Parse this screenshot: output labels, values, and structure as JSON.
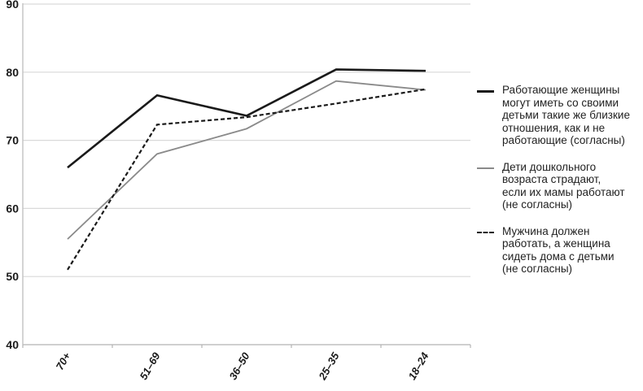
{
  "chart_data": {
    "type": "line",
    "title": "",
    "xlabel": "",
    "ylabel": "",
    "categories": [
      "70+",
      "51–69",
      "36–50",
      "25–35",
      "18–24"
    ],
    "series": [
      {
        "name": "Работающие женщины\nмогут иметь со своими\nдетьми такие же близкие\nотношения, как и не\nработающие (согласны)",
        "values": [
          66,
          76.6,
          73.6,
          80.4,
          80.2
        ],
        "color": "#1a1a1a",
        "width": 2.6,
        "dash": ""
      },
      {
        "name": "Дети дошкольного\nвозраста страдают,\nесли их мамы работают\n(не согласны)",
        "values": [
          55.5,
          68,
          71.7,
          78.7,
          77.4
        ],
        "color": "#8a8a8a",
        "width": 1.8,
        "dash": ""
      },
      {
        "name": "Мужчина должен\nработать, а женщина\nсидеть дома с детьми\n(не согласны)",
        "values": [
          51,
          72.3,
          73.4,
          75.4,
          77.5
        ],
        "color": "#1a1a1a",
        "width": 2.2,
        "dash": "5,3"
      }
    ],
    "ylim": [
      40,
      90
    ],
    "yticks": [
      40,
      50,
      60,
      70,
      80,
      90
    ],
    "grid": true,
    "legend_position": "right",
    "colors": {
      "grid": "#d9d9d9",
      "axis": "#c2c2c2",
      "tick": "#b5b5b5",
      "label_text": "#1a1a1a",
      "legend_text": "#222222"
    }
  }
}
